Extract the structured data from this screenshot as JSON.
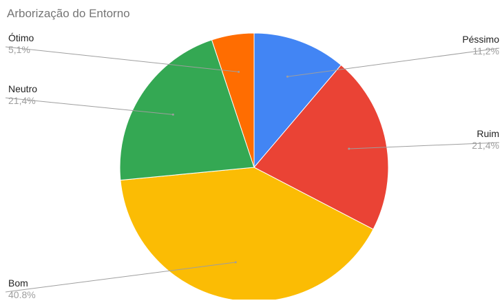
{
  "chart_data": {
    "type": "pie",
    "title": "Arborização do Entorno",
    "start_angle_deg": 0,
    "direction": "clockwise",
    "slices": [
      {
        "name": "Péssimo",
        "value": 11.2,
        "label": "11,2%",
        "color": "#4285f4"
      },
      {
        "name": "Ruim",
        "value": 21.4,
        "label": "21,4%",
        "color": "#ea4335"
      },
      {
        "name": "Bom",
        "value": 40.8,
        "label": "40.8%",
        "color": "#fbbc04"
      },
      {
        "name": "Neutro",
        "value": 21.4,
        "label": "21,4%",
        "color": "#34a853"
      },
      {
        "name": "Ótimo",
        "value": 5.1,
        "label": "5,1%",
        "color": "#ff6d01"
      }
    ],
    "legend": "labels-with-leader-lines"
  }
}
